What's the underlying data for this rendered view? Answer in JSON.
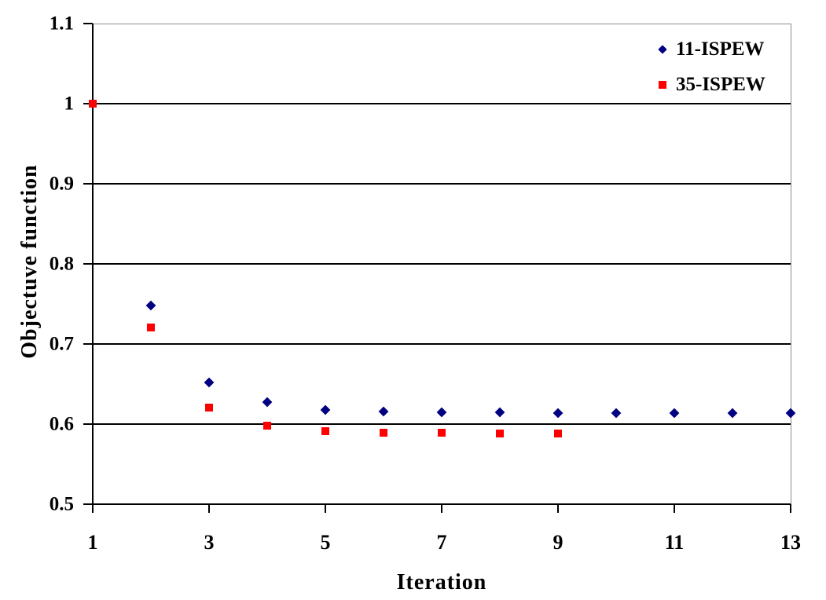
{
  "chart_data": {
    "type": "scatter",
    "title": "",
    "xlabel": "Iteration",
    "ylabel": "Objectuve function",
    "xlim": [
      1,
      13
    ],
    "ylim": [
      0.5,
      1.1
    ],
    "x_ticks": [
      1,
      3,
      5,
      7,
      9,
      11,
      13
    ],
    "x_tick_labels": [
      "1",
      "3",
      "5",
      "7",
      "9",
      "11",
      "13"
    ],
    "y_ticks": [
      0.5,
      0.6,
      0.7,
      0.8,
      0.9,
      1.0,
      1.1
    ],
    "y_tick_labels": [
      "0.5",
      "0.6",
      "0.7",
      "0.8",
      "0.9",
      "1",
      "1.1"
    ],
    "grid": "horizontal gridlines at every y tick, black; top and right plot borders gray",
    "gridline_color": "#000000",
    "plot_border_color": "#8c8c8c",
    "background_color": "#ffffff",
    "legend_position": "top-right inside plot, no border",
    "series": [
      {
        "name": "11-ISPEW",
        "marker": "diamond",
        "color": "#000080",
        "x": [
          1,
          2,
          3,
          4,
          5,
          6,
          7,
          8,
          9,
          10,
          11,
          12,
          13
        ],
        "y": [
          1.0,
          0.748,
          0.652,
          0.627,
          0.618,
          0.616,
          0.615,
          0.615,
          0.614,
          0.614,
          0.614,
          0.614,
          0.614
        ]
      },
      {
        "name": "35-ISPEW",
        "marker": "square",
        "color": "#ff0000",
        "x": [
          1,
          2,
          3,
          4,
          5,
          6,
          7,
          8,
          9
        ],
        "y": [
          1.0,
          0.721,
          0.621,
          0.598,
          0.591,
          0.589,
          0.589,
          0.588,
          0.588
        ]
      }
    ]
  }
}
